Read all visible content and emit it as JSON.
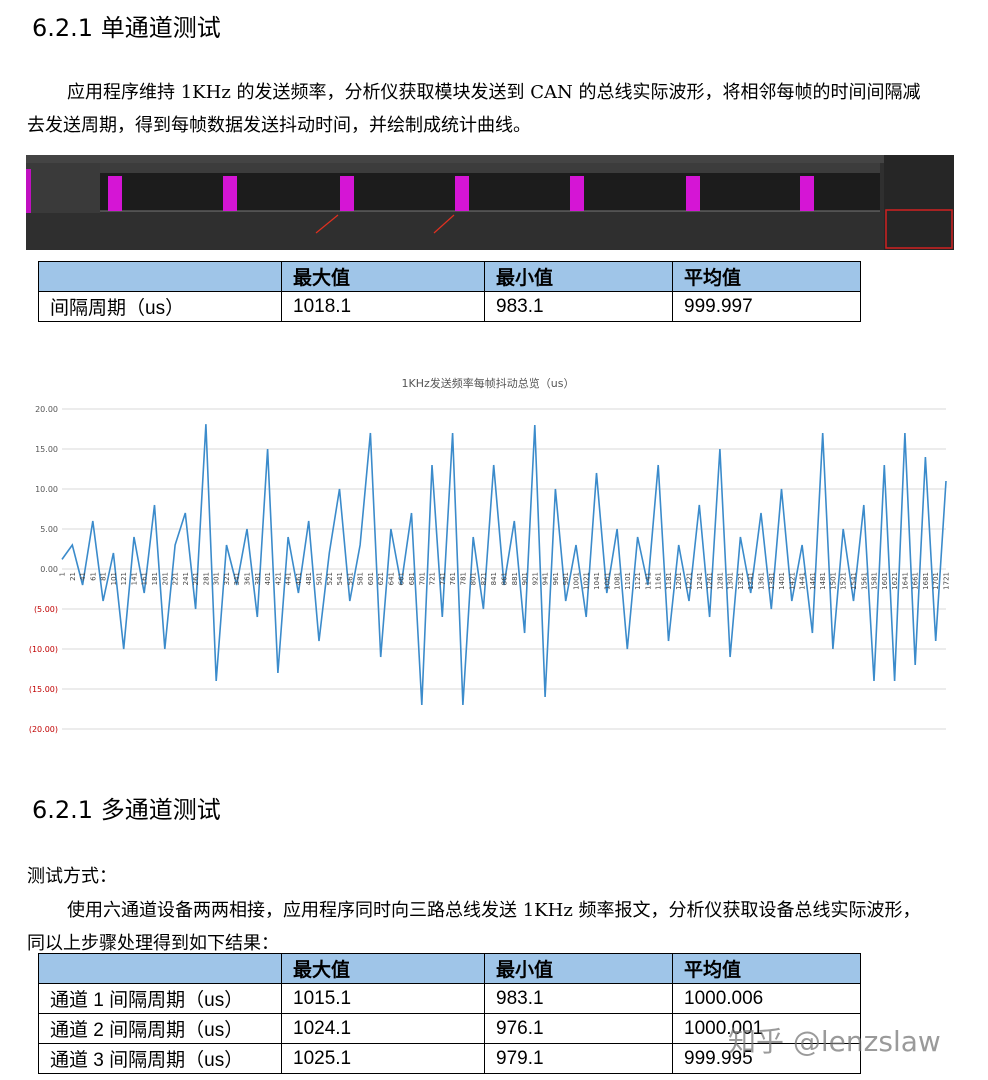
{
  "section1": {
    "title": "6.2.1 单通道测试",
    "paragraph": "应用程序维持 1KHz 的发送频率，分析仪获取模块发送到 CAN 的总线实际波形，将相邻每帧的时间间隔减去发送周期，得到每帧数据发送抖动时间，并绘制成统计曲线。",
    "table": {
      "headers": [
        "最大值",
        "最小值",
        "平均值"
      ],
      "rows": [
        [
          "间隔周期（us）",
          "1018.1",
          "983.1",
          "999.997"
        ]
      ]
    }
  },
  "chart_data": {
    "type": "line",
    "title": "1KHz发送频率每帧抖动总览（us）",
    "categories": [
      "1",
      "21",
      "41",
      "61",
      "81",
      "101",
      "121",
      "141",
      "161",
      "181",
      "201",
      "221",
      "241",
      "261",
      "281",
      "301",
      "321",
      "341",
      "361",
      "381",
      "401",
      "421",
      "441",
      "461",
      "481",
      "501",
      "521",
      "541",
      "561",
      "581",
      "601",
      "621",
      "641",
      "661",
      "681",
      "701",
      "721",
      "741",
      "761",
      "781",
      "801",
      "821",
      "841",
      "861",
      "881",
      "901",
      "921",
      "941",
      "961",
      "981",
      "1001",
      "1021",
      "1041",
      "1061",
      "1081",
      "1101",
      "1121",
      "1141",
      "1161",
      "1181",
      "1201",
      "1221",
      "1241",
      "1261",
      "1281",
      "1301",
      "1321",
      "1341",
      "1361",
      "1381",
      "1401",
      "1421",
      "1441",
      "1461",
      "1481",
      "1501",
      "1521",
      "1541",
      "1561",
      "1581",
      "1601",
      "1621",
      "1641",
      "1661",
      "1681",
      "1701",
      "1721"
    ],
    "values": [
      1.2,
      3,
      -2,
      6,
      -4,
      2,
      -10,
      4,
      -3,
      8,
      -10,
      3,
      7,
      -5,
      18.1,
      -14,
      3,
      -2,
      5,
      -6,
      15,
      -13,
      4,
      -3,
      6,
      -9,
      2,
      10,
      -4,
      3,
      17,
      -11,
      5,
      -2,
      7,
      -17,
      13,
      -6,
      17,
      -17,
      4,
      -5,
      13,
      -2,
      6,
      -8,
      18,
      -16,
      10,
      -4,
      3,
      -6,
      12,
      -3,
      5,
      -10,
      4,
      -2,
      13,
      -9,
      3,
      -4,
      8,
      -6,
      15,
      -11,
      4,
      -3,
      7,
      -5,
      10,
      -4,
      3,
      -8,
      17,
      -10,
      5,
      -4,
      8,
      -14,
      13,
      -14,
      17,
      -12,
      14,
      -9,
      11
    ],
    "color": "#3b8bcb",
    "ylim": [
      -20,
      20
    ],
    "yticks": [
      {
        "value": 20,
        "label": "20.00"
      },
      {
        "value": 15,
        "label": "15.00"
      },
      {
        "value": 10,
        "label": "10.00"
      },
      {
        "value": 5,
        "label": "5.00"
      },
      {
        "value": 0,
        "label": "0.00"
      },
      {
        "value": -5,
        "label": "(5.00)"
      },
      {
        "value": -10,
        "label": "(10.00)"
      },
      {
        "value": -15,
        "label": "(15.00)"
      },
      {
        "value": -20,
        "label": "(20.00)"
      }
    ],
    "negative_tick_color": "#c00000",
    "grid": true
  },
  "section2": {
    "title": "6.2.1 多通道测试",
    "label": "测试方式：",
    "paragraph": "使用六通道设备两两相接，应用程序同时向三路总线发送 1KHz 频率报文，分析仪获取设备总线实际波形，同以上步骤处理得到如下结果：",
    "table": {
      "headers": [
        "最大值",
        "最小值",
        "平均值"
      ],
      "rows": [
        [
          "通道 1 间隔周期（us）",
          "1015.1",
          "983.1",
          "1000.006"
        ],
        [
          "通道 2 间隔周期（us）",
          "1024.1",
          "976.1",
          "1000.001"
        ],
        [
          "通道 3 间隔周期（us）",
          "1025.1",
          "979.1",
          "999.995"
        ]
      ]
    }
  },
  "watermark": "知乎 @lenzslaw"
}
